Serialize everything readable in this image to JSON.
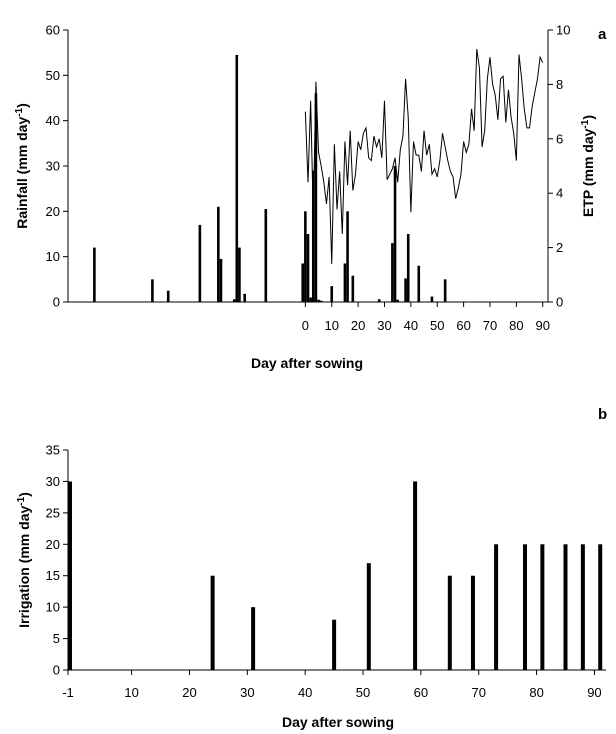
{
  "chart_data": [
    {
      "type": "bar+line",
      "panel_label": "a",
      "xlabel": "Day after sowing",
      "ylabel_left": "Rainfall (mm day",
      "ylabel_left_sup": "-1",
      "ylabel_left_close": ")",
      "ylabel_right": "ETP (mm day",
      "ylabel_right_sup": "-1",
      "ylabel_right_close": ")",
      "ylim_left": [
        0,
        60
      ],
      "ylim_right": [
        0,
        10
      ],
      "xlim": [
        -90,
        92
      ],
      "x_ticks": [
        0,
        10,
        20,
        30,
        40,
        50,
        60,
        70,
        80,
        90
      ],
      "y_left_ticks": [
        0,
        10,
        20,
        30,
        40,
        50,
        60
      ],
      "y_right_ticks": [
        0,
        2,
        4,
        6,
        8,
        10
      ],
      "grid": false,
      "rainfall": {
        "x": [
          -80,
          -58,
          -52,
          -40,
          -33,
          -32,
          -27,
          -26,
          -25,
          -23,
          -15,
          -1,
          0,
          1,
          2,
          3,
          4,
          5,
          6,
          10,
          15,
          16,
          18,
          28,
          33,
          34,
          35,
          38,
          39,
          43,
          48,
          53
        ],
        "values": [
          12,
          5,
          2.5,
          17,
          21,
          9.5,
          0.6,
          54.5,
          12,
          1.8,
          20.5,
          8.5,
          20,
          15,
          1,
          29,
          46,
          0.5,
          0.3,
          3.5,
          8.5,
          20,
          5.8,
          0.6,
          13,
          30,
          0.5,
          5.2,
          15,
          8,
          1.2,
          5
        ]
      },
      "etp": {
        "x": [
          0,
          1,
          2,
          3,
          4,
          5,
          6,
          7,
          8,
          9,
          10,
          11,
          12,
          13,
          14,
          15,
          16,
          17,
          18,
          19,
          20,
          21,
          22,
          23,
          24,
          25,
          26,
          27,
          28,
          29,
          30,
          31,
          32,
          33,
          34,
          35,
          36,
          37,
          38,
          39,
          40,
          41,
          42,
          43,
          44,
          45,
          46,
          47,
          48,
          49,
          50,
          51,
          52,
          53,
          54,
          55,
          56,
          57,
          58,
          59,
          60,
          61,
          62,
          63,
          64,
          65,
          66,
          67,
          68,
          69,
          70,
          71,
          72,
          73,
          74,
          75,
          76,
          77,
          78,
          79,
          80,
          81,
          82,
          83,
          84,
          85,
          86,
          87,
          88,
          89,
          90
        ],
        "values": [
          7.0,
          4.4,
          7.4,
          3.2,
          8.1,
          5.5,
          5.0,
          4.4,
          3.6,
          4.6,
          1.4,
          5.8,
          3.4,
          4.8,
          2.5,
          5.9,
          4.3,
          6.3,
          4.1,
          4.7,
          5.9,
          5.6,
          6.2,
          6.4,
          5.3,
          5.2,
          6.1,
          5.7,
          6.0,
          5.3,
          7.4,
          4.5,
          4.7,
          4.9,
          5.3,
          4.4,
          5.6,
          6.1,
          8.2,
          6.8,
          3.3,
          5.9,
          5.4,
          5.4,
          4.8,
          6.3,
          5.4,
          5.8,
          4.7,
          4.9,
          4.6,
          5.2,
          6.2,
          5.7,
          5.2,
          4.8,
          4.6,
          3.8,
          4.2,
          4.7,
          5.9,
          5.5,
          5.8,
          7.1,
          6.3,
          9.3,
          8.6,
          5.7,
          6.3,
          8.2,
          9.0,
          8.0,
          7.6,
          6.7,
          8.2,
          8.3,
          6.6,
          7.8,
          6.8,
          6.2,
          5.2,
          9.1,
          8.2,
          7.1,
          6.4,
          6.4,
          7.2,
          7.7,
          8.2,
          9.0,
          8.8
        ]
      }
    },
    {
      "type": "bar",
      "panel_label": "b",
      "xlabel": "Day after sowing",
      "ylabel": "Irrigation (mm day",
      "ylabel_sup": "-1",
      "ylabel_close": ")",
      "ylim": [
        0,
        35
      ],
      "xlim": [
        -1,
        92
      ],
      "x_ticks": [
        -1,
        10,
        20,
        30,
        40,
        50,
        60,
        70,
        80,
        90
      ],
      "y_ticks": [
        0,
        5,
        10,
        15,
        20,
        25,
        30,
        35
      ],
      "grid": false,
      "x": [
        -1,
        24,
        31,
        45,
        51,
        59,
        65,
        69,
        73,
        78,
        81,
        85,
        88,
        91
      ],
      "values": [
        30,
        15,
        10,
        8,
        17,
        30,
        15,
        15,
        20,
        20,
        20,
        20,
        20,
        20
      ]
    }
  ]
}
